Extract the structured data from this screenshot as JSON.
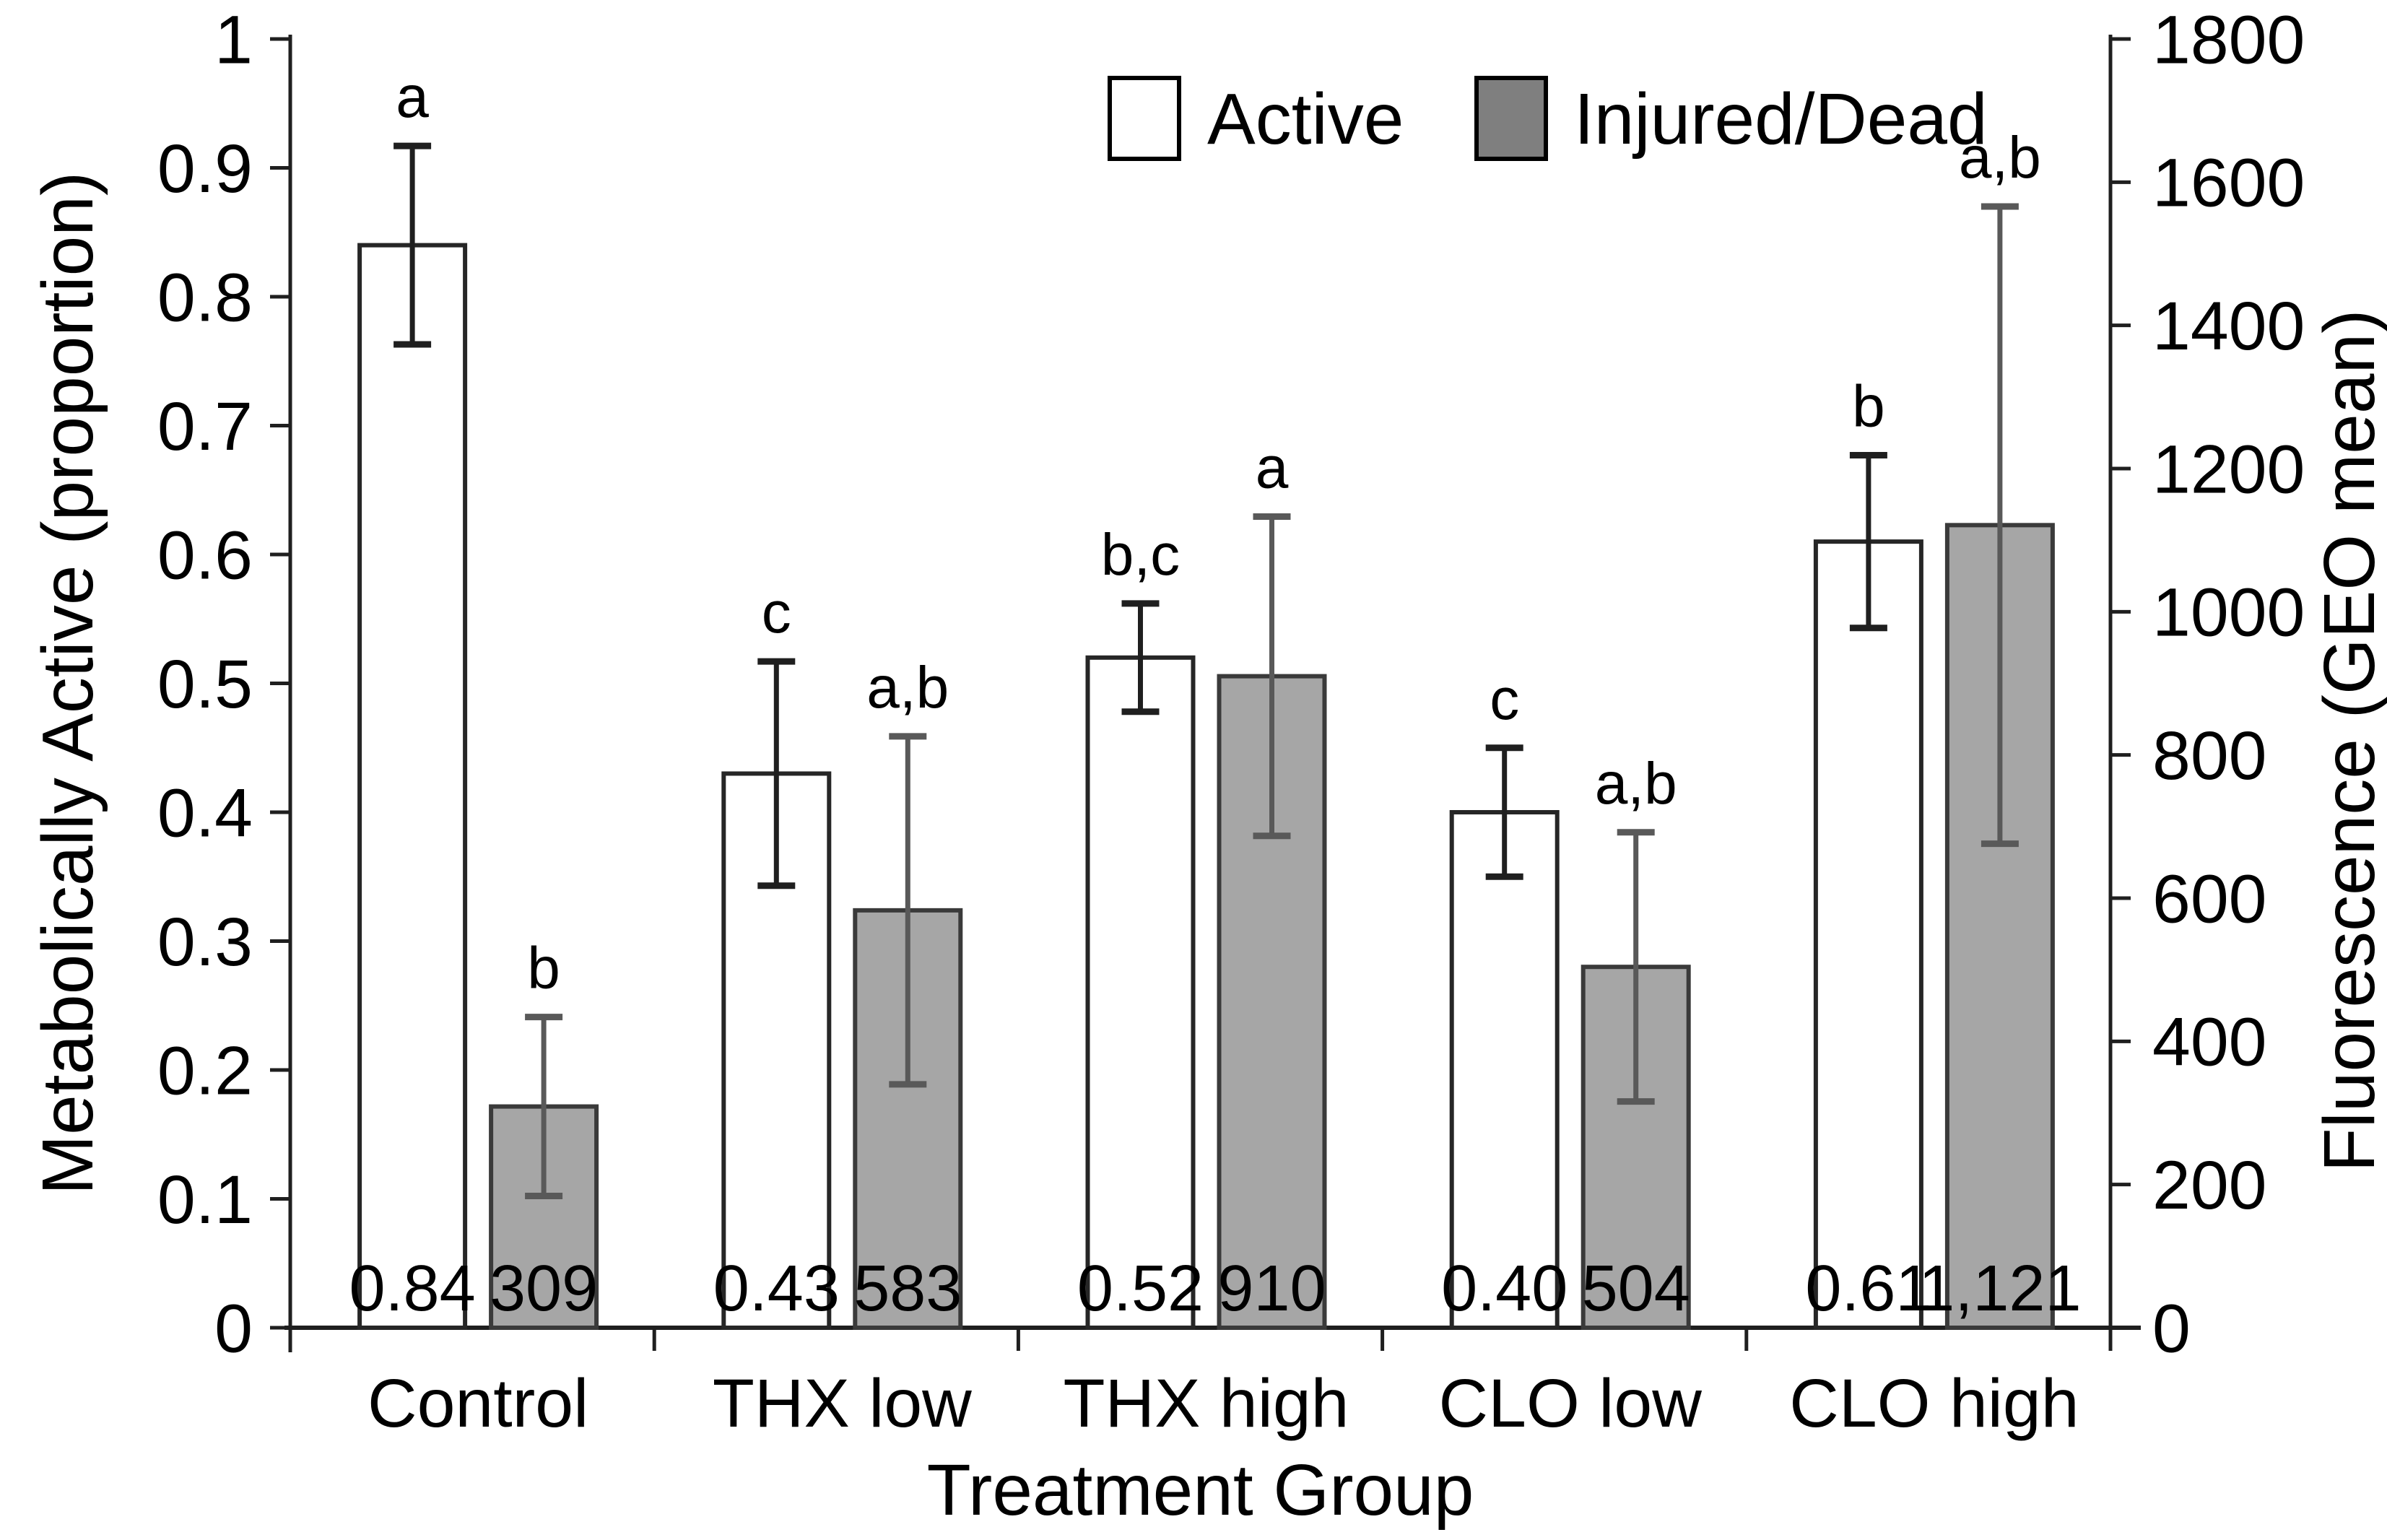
{
  "chart_data": {
    "type": "bar",
    "title": "",
    "xlabel": "Treatment Group",
    "ylabel_left": "Metabolically Active (proportion)",
    "ylabel_right": "Fluorescence (GEO mean)",
    "categories": [
      "Control",
      "THX low",
      "THX high",
      "CLO low",
      "CLO high"
    ],
    "left_axis": {
      "min": 0,
      "max": 1,
      "step": 0.1,
      "tick_labels": [
        "0",
        "0.1",
        "0.2",
        "0.3",
        "0.4",
        "0.5",
        "0.6",
        "0.7",
        "0.8",
        "0.9",
        "1"
      ]
    },
    "right_axis": {
      "min": 0,
      "max": 1800,
      "step": 200,
      "tick_labels": [
        "0",
        "200",
        "400",
        "600",
        "800",
        "1000",
        "1200",
        "1400",
        "1600",
        "1800"
      ]
    },
    "grid": "off",
    "legend_position": "top-center",
    "series": [
      {
        "name": "Active",
        "axis": "left",
        "fill": "#ffffff",
        "edge": "#262626",
        "error_color": "#1f1f1f",
        "values": [
          0.84,
          0.43,
          0.52,
          0.4,
          0.61
        ],
        "value_labels": [
          "0.84",
          "0.43",
          "0.52",
          "0.40",
          "0.61"
        ],
        "errors": [
          0.077,
          0.087,
          0.042,
          0.05,
          0.067
        ],
        "sig_letters": [
          "a",
          "c",
          "b,c",
          "c",
          "b"
        ]
      },
      {
        "name": "Injured/Dead",
        "axis": "right",
        "fill": "#a6a6a6",
        "edge": "#3a3a3a",
        "error_color": "#595959",
        "values": [
          309,
          583,
          910,
          504,
          1121
        ],
        "value_labels": [
          "309",
          "583",
          "910",
          "504",
          "1,121"
        ],
        "errors": [
          125,
          243,
          223,
          188,
          445
        ],
        "sig_letters": [
          "b",
          "a,b",
          "a",
          "a,b",
          "a,b"
        ]
      }
    ],
    "legend": [
      {
        "label": "Active",
        "fill": "#ffffff",
        "border": "#000000"
      },
      {
        "label": "Injured/Dead",
        "fill": "#7f7f7f",
        "border": "#000000"
      }
    ]
  },
  "colors": {
    "background": "#ffffff",
    "axis": "#1f1f1f",
    "text": "#000000",
    "gray_bar": "#a6a6a6",
    "legend_gray": "#7f7f7f"
  }
}
